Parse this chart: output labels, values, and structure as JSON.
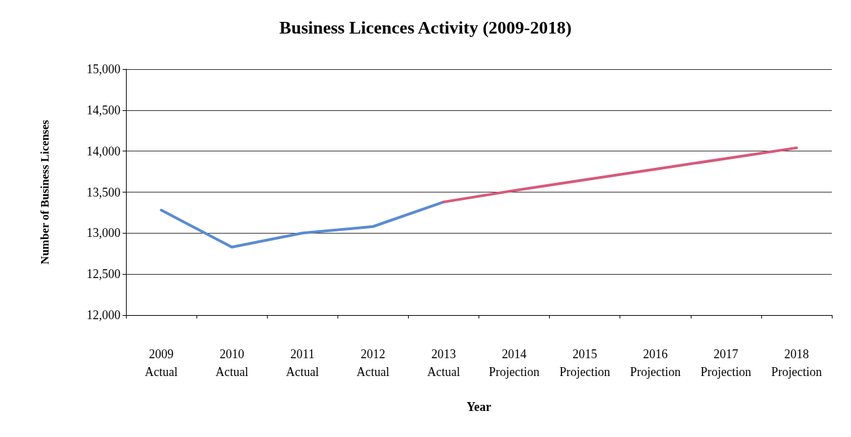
{
  "chart_data": {
    "type": "line",
    "title": "Business Licences Activity (2009-2018)",
    "xlabel": "Year",
    "ylabel": "Number of Business Licenses",
    "categories": [
      "2009\nActual",
      "2010\nActual",
      "2011\nActual",
      "2012\nActual",
      "2013\nActual",
      "2014\nProjection",
      "2015\nProjection",
      "2016\nProjection",
      "2017\nProjection",
      "2018\nProjection"
    ],
    "series": [
      {
        "color": "#5b8bd0",
        "values": [
          13280,
          12830,
          13000,
          13080,
          13380,
          null,
          null,
          null,
          null,
          null
        ]
      },
      {
        "color": "#d65a7a",
        "values": [
          null,
          null,
          null,
          null,
          13380,
          13520,
          13650,
          13780,
          13910,
          14040
        ]
      }
    ],
    "ylim": [
      12000,
      15000
    ],
    "yticks": [
      {
        "value": 12000,
        "label": "12,000"
      },
      {
        "value": 12500,
        "label": "12,500"
      },
      {
        "value": 13000,
        "label": "13,000"
      },
      {
        "value": 13500,
        "label": "13,500"
      },
      {
        "value": 14000,
        "label": "14,000"
      },
      {
        "value": 14500,
        "label": "14,500"
      },
      {
        "value": 15000,
        "label": "15,000"
      }
    ],
    "grid": "y",
    "marker": "none",
    "line_style": "solid"
  }
}
